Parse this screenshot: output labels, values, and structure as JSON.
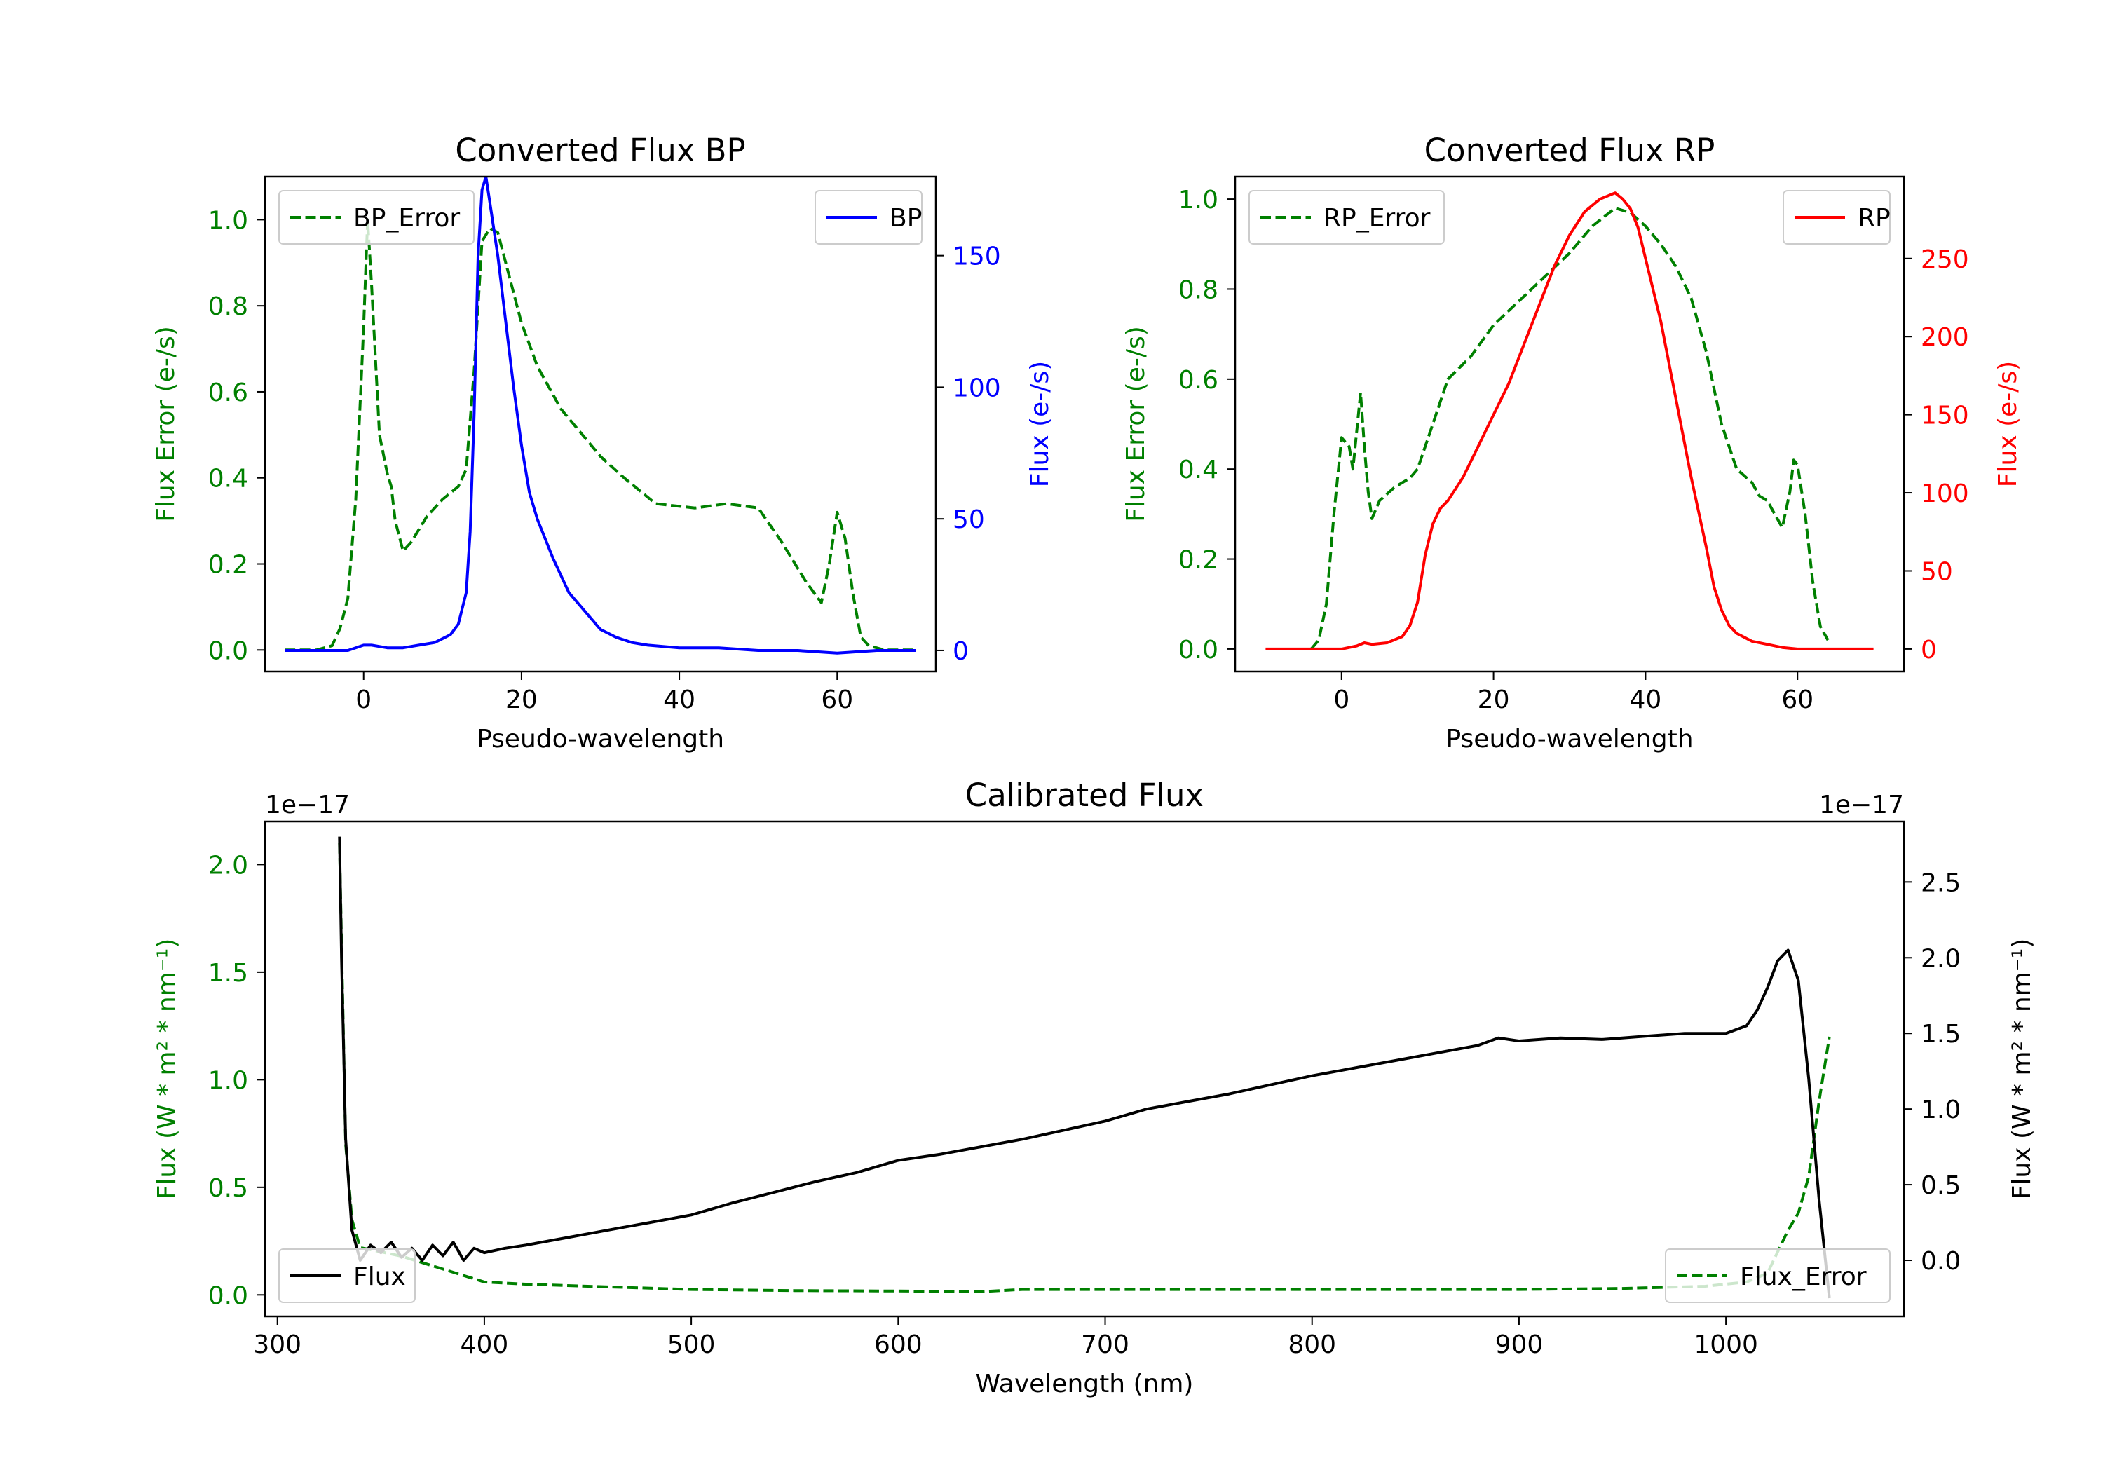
{
  "colors": {
    "error_green": "#008000",
    "bp_blue": "#0000ff",
    "rp_red": "#ff0000",
    "flux_black": "#000000",
    "axis_black": "#000000"
  },
  "chart_data": [
    {
      "id": "bp",
      "type": "line",
      "title": "Converted Flux BP",
      "xlabel": "Pseudo-wavelength",
      "ylabel_left": "Flux Error (e-/s)",
      "ylabel_right": "Flux (e-/s)",
      "xlim": [
        -12.5,
        72.5
      ],
      "ylim_left": [
        -0.05,
        1.1
      ],
      "ylim_right": [
        -8,
        180
      ],
      "xticks": [
        0,
        20,
        40,
        60
      ],
      "yticks_left": [
        0.0,
        0.2,
        0.4,
        0.6,
        0.8,
        1.0
      ],
      "yticks_right": [
        0,
        50,
        100,
        150
      ],
      "legend_left": {
        "label": "BP_Error",
        "placement": "upper left"
      },
      "legend_right": {
        "label": "BP",
        "placement": "upper right"
      },
      "series": [
        {
          "name": "BP_Error",
          "axis": "left",
          "style": "dashed",
          "color": "#008000",
          "x": [
            -10,
            -6,
            -4,
            -3,
            -2,
            -1,
            0,
            0.5,
            1,
            2,
            3,
            3.5,
            4,
            5,
            6,
            8,
            10,
            12,
            13,
            14,
            15,
            16,
            17,
            18,
            20,
            22,
            25,
            30,
            33,
            37,
            42,
            46,
            50,
            53,
            56,
            58,
            59,
            60,
            61,
            62,
            63,
            64,
            66,
            70
          ],
          "y": [
            0.0,
            0.0,
            0.01,
            0.05,
            0.12,
            0.35,
            0.75,
            1.0,
            0.85,
            0.5,
            0.41,
            0.38,
            0.3,
            0.23,
            0.25,
            0.31,
            0.35,
            0.38,
            0.42,
            0.65,
            0.95,
            0.98,
            0.97,
            0.9,
            0.76,
            0.66,
            0.56,
            0.45,
            0.4,
            0.34,
            0.33,
            0.34,
            0.33,
            0.25,
            0.16,
            0.11,
            0.2,
            0.32,
            0.26,
            0.13,
            0.03,
            0.01,
            0.0,
            0.0
          ]
        },
        {
          "name": "BP",
          "axis": "right",
          "style": "solid",
          "color": "#0000ff",
          "x": [
            -10,
            -5,
            -2,
            0,
            1,
            3,
            5,
            7,
            9,
            11,
            12,
            13,
            13.5,
            14,
            14.5,
            15,
            15.5,
            16,
            17,
            18,
            19,
            20,
            21,
            22,
            24,
            26,
            28,
            30,
            32,
            34,
            36,
            40,
            45,
            50,
            55,
            60,
            65,
            70
          ],
          "y": [
            0,
            0,
            0,
            2,
            2,
            1,
            1,
            2,
            3,
            6,
            10,
            22,
            45,
            90,
            150,
            175,
            180,
            170,
            150,
            125,
            100,
            78,
            60,
            50,
            35,
            22,
            15,
            8,
            5,
            3,
            2,
            1,
            1,
            0,
            0,
            -1,
            0,
            0
          ]
        }
      ]
    },
    {
      "id": "rp",
      "type": "line",
      "title": "Converted Flux RP",
      "xlabel": "Pseudo-wavelength",
      "ylabel_left": "Flux Error (e-/s)",
      "ylabel_right": "Flux (e-/s)",
      "xlim": [
        -14,
        74
      ],
      "ylim_left": [
        -0.05,
        1.05
      ],
      "ylim_right": [
        -14.4,
        302.4
      ],
      "xticks": [
        0,
        20,
        40,
        60
      ],
      "yticks_left": [
        0.0,
        0.2,
        0.4,
        0.6,
        0.8,
        1.0
      ],
      "yticks_right": [
        0,
        50,
        100,
        150,
        200,
        250
      ],
      "legend_left": {
        "label": "RP_Error",
        "placement": "upper left"
      },
      "legend_right": {
        "label": "RP",
        "placement": "upper right"
      },
      "series": [
        {
          "name": "RP_Error",
          "axis": "left",
          "style": "dashed",
          "color": "#008000",
          "x": [
            -4,
            -3,
            -2,
            -1,
            0,
            1,
            1.5,
            2.5,
            3,
            3.5,
            4,
            5,
            7,
            9,
            10,
            12,
            14,
            17,
            20,
            25,
            30,
            33,
            36,
            38,
            40,
            42,
            44,
            46,
            48,
            50,
            52,
            54,
            55,
            56,
            57,
            58,
            59,
            59.5,
            60,
            61,
            62,
            63,
            64
          ],
          "y": [
            0.0,
            0.02,
            0.1,
            0.3,
            0.47,
            0.45,
            0.4,
            0.57,
            0.45,
            0.35,
            0.29,
            0.33,
            0.36,
            0.38,
            0.4,
            0.5,
            0.6,
            0.65,
            0.72,
            0.8,
            0.88,
            0.94,
            0.98,
            0.97,
            0.94,
            0.9,
            0.85,
            0.78,
            0.66,
            0.5,
            0.4,
            0.37,
            0.34,
            0.33,
            0.3,
            0.27,
            0.35,
            0.42,
            0.41,
            0.3,
            0.15,
            0.05,
            0.02
          ]
        },
        {
          "name": "RP",
          "axis": "right",
          "style": "solid",
          "color": "#ff0000",
          "x": [
            -10,
            0,
            2,
            3,
            4,
            6,
            8,
            9,
            10,
            11,
            12,
            13,
            14,
            16,
            18,
            20,
            22,
            24,
            26,
            28,
            30,
            32,
            34,
            36,
            37,
            38,
            39,
            40,
            42,
            44,
            46,
            48,
            49,
            50,
            51,
            52,
            54,
            56,
            58,
            60,
            62,
            65,
            70
          ],
          "y": [
            0,
            0,
            2,
            4,
            3,
            4,
            8,
            15,
            30,
            60,
            80,
            90,
            95,
            110,
            130,
            150,
            170,
            195,
            220,
            245,
            265,
            280,
            288,
            292,
            288,
            282,
            270,
            250,
            210,
            160,
            110,
            65,
            40,
            25,
            15,
            10,
            5,
            3,
            1,
            0,
            0,
            0,
            0
          ]
        }
      ]
    },
    {
      "id": "calibrated",
      "type": "line",
      "title": "Calibrated Flux",
      "xlabel": "Wavelength (nm)",
      "ylabel_left": "Flux (W * m² * nm⁻¹)",
      "ylabel_right": "Flux (W * m² * nm⁻¹)",
      "offset_left": "1e−17",
      "offset_right": "1e−17",
      "xlim": [
        294,
        1086
      ],
      "ylim_left": [
        -0.1,
        2.2
      ],
      "ylim_right": [
        -0.3705,
        2.9
      ],
      "xticks": [
        300,
        400,
        500,
        600,
        700,
        800,
        900,
        1000
      ],
      "yticks_left": [
        0.0,
        0.5,
        1.0,
        1.5,
        2.0
      ],
      "yticks_right": [
        0.0,
        0.5,
        1.0,
        1.5,
        2.0,
        2.5
      ],
      "legend_left": {
        "label": "Flux",
        "placement": "lower left"
      },
      "legend_right": {
        "label": "Flux_Error",
        "placement": "lower right"
      },
      "series": [
        {
          "name": "Flux_Error",
          "axis": "left",
          "style": "dashed",
          "color": "#008000",
          "x": [
            330,
            333,
            336,
            340,
            350,
            360,
            370,
            380,
            400,
            420,
            450,
            500,
            550,
            600,
            640,
            660,
            700,
            800,
            900,
            950,
            990,
            1010,
            1020,
            1025,
            1030,
            1035,
            1040,
            1045,
            1050
          ],
          "y": [
            2.1,
            0.7,
            0.35,
            0.22,
            0.2,
            0.18,
            0.15,
            0.12,
            0.06,
            0.05,
            0.04,
            0.025,
            0.02,
            0.018,
            0.015,
            0.025,
            0.025,
            0.025,
            0.025,
            0.03,
            0.04,
            0.06,
            0.1,
            0.2,
            0.3,
            0.38,
            0.55,
            0.9,
            1.2
          ]
        },
        {
          "name": "Flux",
          "axis": "right",
          "style": "solid",
          "color": "#000000",
          "x": [
            330,
            331,
            333,
            336,
            340,
            345,
            350,
            355,
            360,
            365,
            370,
            375,
            380,
            385,
            390,
            395,
            400,
            410,
            420,
            440,
            460,
            480,
            500,
            520,
            540,
            560,
            580,
            600,
            620,
            640,
            660,
            680,
            700,
            720,
            740,
            760,
            780,
            800,
            820,
            840,
            860,
            880,
            890,
            900,
            920,
            940,
            960,
            980,
            1000,
            1010,
            1015,
            1020,
            1025,
            1030,
            1035,
            1040,
            1045,
            1050
          ],
          "y": [
            2.8,
            2.0,
            0.8,
            0.2,
            0.0,
            0.1,
            0.05,
            0.12,
            0.02,
            0.08,
            0.0,
            0.1,
            0.03,
            0.12,
            0.0,
            0.08,
            0.05,
            0.08,
            0.1,
            0.15,
            0.2,
            0.25,
            0.3,
            0.38,
            0.45,
            0.52,
            0.58,
            0.66,
            0.7,
            0.75,
            0.8,
            0.86,
            0.92,
            1.0,
            1.05,
            1.1,
            1.16,
            1.22,
            1.27,
            1.32,
            1.37,
            1.42,
            1.47,
            1.45,
            1.47,
            1.46,
            1.48,
            1.5,
            1.5,
            1.55,
            1.65,
            1.8,
            1.98,
            2.05,
            1.85,
            1.2,
            0.4,
            -0.25
          ]
        }
      ]
    }
  ]
}
